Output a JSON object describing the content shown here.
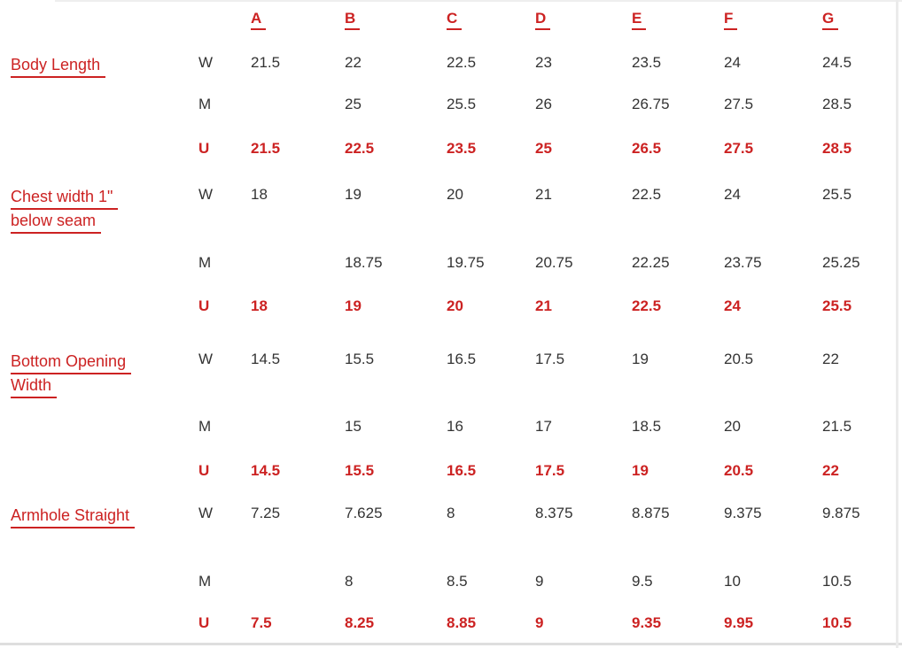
{
  "table": {
    "columns": [
      "A",
      "B",
      "C",
      "D",
      "E",
      "F",
      "G"
    ],
    "size_types": [
      "W",
      "M",
      "U"
    ],
    "colors": {
      "accent_red": "#cc2222",
      "text_black": "#333333",
      "background": "#ffffff"
    },
    "sections": [
      {
        "label": "Body Length",
        "label_lines": [
          "Body Length"
        ],
        "rows": [
          {
            "type": "W",
            "values": [
              "21.5",
              "22",
              "22.5",
              "23",
              "23.5",
              "24",
              "24.5"
            ]
          },
          {
            "type": "M",
            "values": [
              "",
              "25",
              "25.5",
              "26",
              "26.75",
              "27.5",
              "28.5"
            ]
          },
          {
            "type": "U",
            "values": [
              "21.5",
              "22.5",
              "23.5",
              "25",
              "26.5",
              "27.5",
              "28.5"
            ]
          }
        ]
      },
      {
        "label": "Chest width 1\" below seam",
        "label_lines": [
          "Chest width 1\"",
          "below seam"
        ],
        "rows": [
          {
            "type": "W",
            "values": [
              "18",
              "19",
              "20",
              "21",
              "22.5",
              "24",
              "25.5"
            ]
          },
          {
            "type": "M",
            "values": [
              "",
              "18.75",
              "19.75",
              "20.75",
              "22.25",
              "23.75",
              "25.25"
            ]
          },
          {
            "type": "U",
            "values": [
              "18",
              "19",
              "20",
              "21",
              "22.5",
              "24",
              "25.5"
            ]
          }
        ]
      },
      {
        "label": "Bottom Opening Width",
        "label_lines": [
          "Bottom Opening",
          "Width"
        ],
        "rows": [
          {
            "type": "W",
            "values": [
              "14.5",
              "15.5",
              "16.5",
              "17.5",
              "19",
              "20.5",
              "22"
            ]
          },
          {
            "type": "M",
            "values": [
              "",
              "15",
              "16",
              "17",
              "18.5",
              "20",
              "21.5"
            ]
          },
          {
            "type": "U",
            "values": [
              "14.5",
              "15.5",
              "16.5",
              "17.5",
              "19",
              "20.5",
              "22"
            ]
          }
        ]
      },
      {
        "label": "Armhole Straight",
        "label_lines": [
          "Armhole Straight"
        ],
        "rows": [
          {
            "type": "W",
            "values": [
              "7.25",
              "7.625",
              "8",
              "8.375",
              "8.875",
              "9.375",
              "9.875"
            ]
          },
          {
            "type": "M",
            "values": [
              "",
              "8",
              "8.5",
              "9",
              "9.5",
              "10",
              "10.5"
            ]
          },
          {
            "type": "U",
            "values": [
              "7.5",
              "8.25",
              "8.85",
              "9",
              "9.35",
              "9.95",
              "10.5"
            ]
          }
        ]
      }
    ]
  }
}
